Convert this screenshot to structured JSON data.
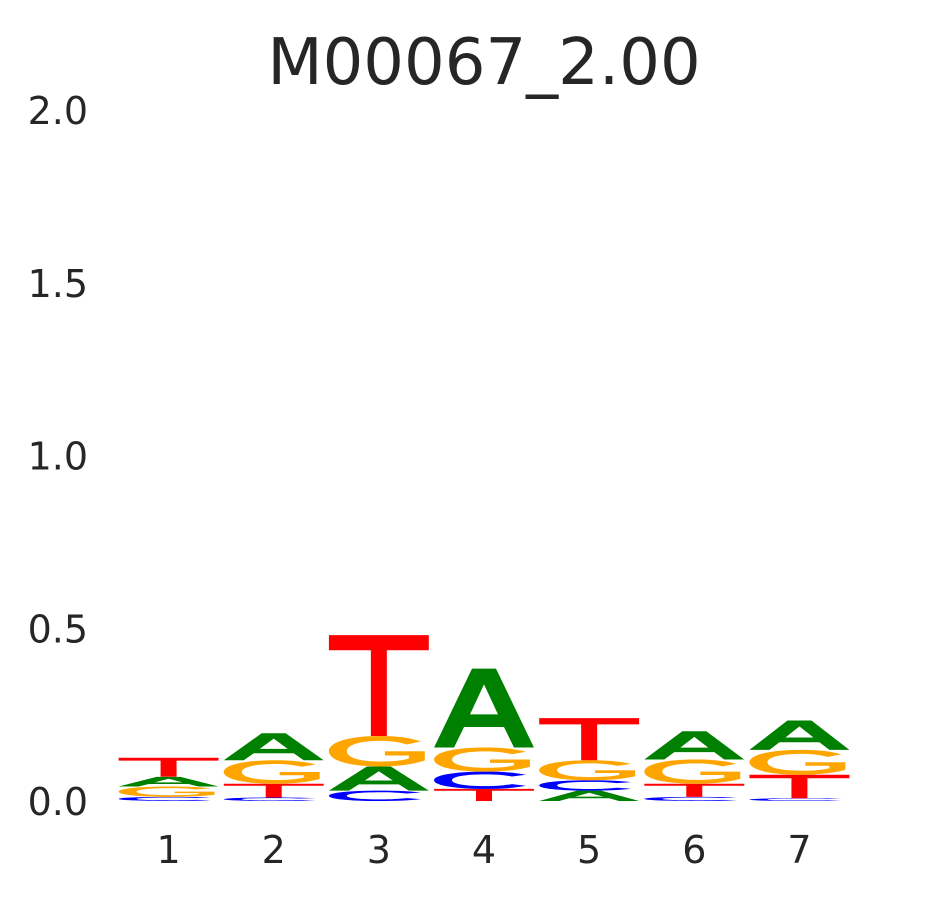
{
  "chart_data": {
    "type": "sequence-logo",
    "title": "M00067_2.00",
    "xlabel": "",
    "ylabel": "",
    "ylim": [
      0,
      2
    ],
    "y_ticks": [
      "0.0",
      "0.5",
      "1.0",
      "1.5",
      "2.0"
    ],
    "y_tick_values": [
      0,
      0.5,
      1.0,
      1.5,
      2.0
    ],
    "x_ticks": [
      "1",
      "2",
      "3",
      "4",
      "5",
      "6",
      "7"
    ],
    "grid": false,
    "colors": {
      "A": "#008000",
      "C": "#0000ff",
      "G": "#ffa500",
      "T": "#ff0000"
    },
    "positions": [
      {
        "position": "1",
        "letters": [
          {
            "base": "C",
            "height": 0.012
          },
          {
            "base": "G",
            "height": 0.03
          },
          {
            "base": "A",
            "height": 0.028
          },
          {
            "base": "T",
            "height": 0.055
          }
        ]
      },
      {
        "position": "2",
        "letters": [
          {
            "base": "C",
            "height": 0.01
          },
          {
            "base": "T",
            "height": 0.04
          },
          {
            "base": "G",
            "height": 0.068
          },
          {
            "base": "A",
            "height": 0.078
          }
        ]
      },
      {
        "position": "3",
        "letters": [
          {
            "base": "C",
            "height": 0.03
          },
          {
            "base": "A",
            "height": 0.07
          },
          {
            "base": "G",
            "height": 0.088
          },
          {
            "base": "T",
            "height": 0.292
          }
        ]
      },
      {
        "position": "4",
        "letters": [
          {
            "base": "T",
            "height": 0.035
          },
          {
            "base": "C",
            "height": 0.05
          },
          {
            "base": "G",
            "height": 0.07
          },
          {
            "base": "A",
            "height": 0.228
          }
        ]
      },
      {
        "position": "5",
        "letters": [
          {
            "base": "A",
            "height": 0.03
          },
          {
            "base": "C",
            "height": 0.03
          },
          {
            "base": "G",
            "height": 0.058
          },
          {
            "base": "T",
            "height": 0.122
          }
        ]
      },
      {
        "position": "6",
        "letters": [
          {
            "base": "C",
            "height": 0.012
          },
          {
            "base": "T",
            "height": 0.038
          },
          {
            "base": "G",
            "height": 0.07
          },
          {
            "base": "A",
            "height": 0.082
          }
        ]
      },
      {
        "position": "7",
        "letters": [
          {
            "base": "C",
            "height": 0.008
          },
          {
            "base": "T",
            "height": 0.068
          },
          {
            "base": "G",
            "height": 0.072
          },
          {
            "base": "A",
            "height": 0.085
          }
        ]
      }
    ]
  }
}
